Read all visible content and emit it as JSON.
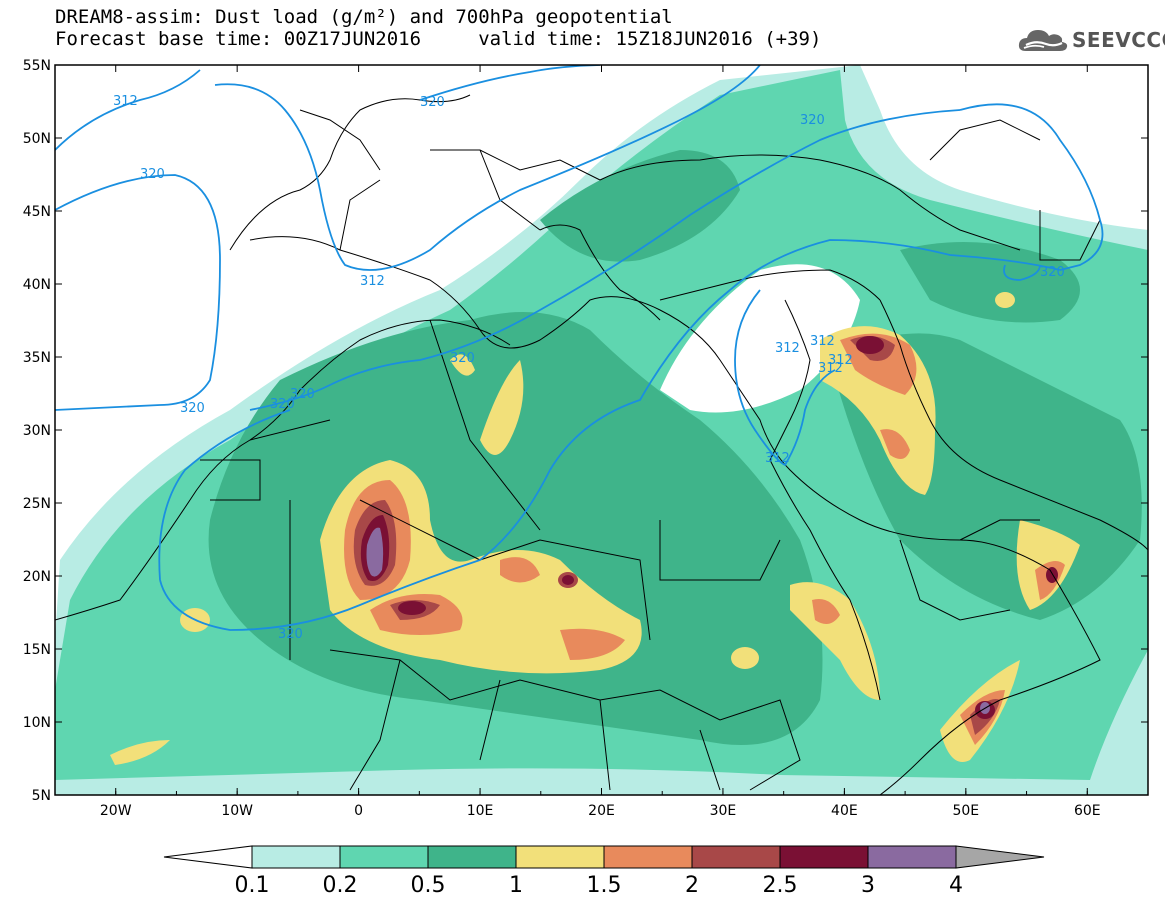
{
  "title": {
    "line1": "DREAM8-assim: Dust load (g/m²) and 700hPa geopotential",
    "line2": "Forecast base time: 00Z17JUN2016     valid time: 15Z18JUN2016 (+39)"
  },
  "logo": {
    "text": "SEEVCCC",
    "icon": "cloud-icon"
  },
  "map": {
    "lon_range": [
      -25,
      65
    ],
    "lat_range": [
      5,
      55
    ],
    "lat_labels": [
      "55N",
      "50N",
      "45N",
      "40N",
      "35N",
      "30N",
      "25N",
      "20N",
      "15N",
      "10N",
      "5N"
    ],
    "lon_labels": [
      "20W",
      "10W",
      "0",
      "10E",
      "20E",
      "30E",
      "40E",
      "50E",
      "60E"
    ],
    "contour_labels": [
      "312",
      "320",
      "320",
      "312",
      "320",
      "320",
      "320",
      "312",
      "320",
      "320",
      "312",
      "312",
      "312",
      "312",
      "320",
      "320"
    ]
  },
  "colorbar": {
    "levels": [
      "0.1",
      "0.2",
      "0.5",
      "1",
      "1.5",
      "2",
      "2.5",
      "3",
      "4"
    ],
    "colors": [
      "#ffffff",
      "#b8ece4",
      "#5fd6b0",
      "#3fb48a",
      "#f2e07a",
      "#e88a5c",
      "#a84848",
      "#7a1034",
      "#8a6aa0",
      "#a6a6a6"
    ]
  },
  "palette": {
    "contour": "#1a8fe0",
    "border": "#000000"
  }
}
